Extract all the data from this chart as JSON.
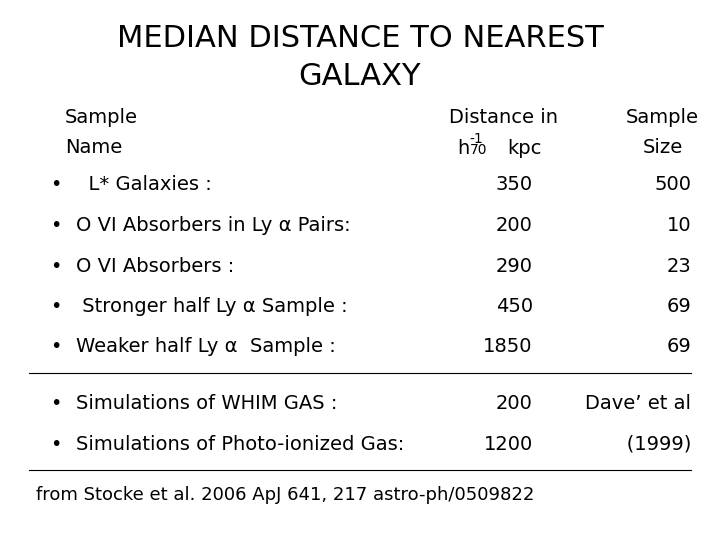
{
  "title_line1": "MEDIAN DISTANCE TO NEAREST",
  "title_line2": "GALAXY",
  "header_col1": "Sample\nName",
  "header_col2": "Distance in\nh⁻¹₀ kpc",
  "header_col2_plain": "Distance in",
  "header_col2_sub": "h",
  "header_col3": "Sample\nSize",
  "rows": [
    {
      "bullet": true,
      "name": "  L* Galaxies :",
      "dist": "350",
      "size": "500"
    },
    {
      "bullet": true,
      "name": "O VI Absorbers in Ly α Pairs:",
      "dist": "200",
      "size": "10"
    },
    {
      "bullet": true,
      "name": "O VI Absorbers :",
      "dist": "290",
      "size": "23"
    },
    {
      "bullet": true,
      "name": " Stronger half Ly α Sample :",
      "dist": "450",
      "size": "69"
    },
    {
      "bullet": true,
      "name": "Weaker half Ly α  Sample :",
      "dist": "1850",
      "size": "69"
    }
  ],
  "sim_rows": [
    {
      "bullet": true,
      "name": "Simulations of WHIM GAS :",
      "dist": "200",
      "extra": "Dave’ et al"
    },
    {
      "bullet": true,
      "name": "Simulations of Photo-ionized Gas:",
      "dist": "1200",
      "extra": "   (1999)"
    }
  ],
  "footer": "from Stocke et al. 2006 ApJ 641, 217 astro-ph/0509822",
  "bg_color": "#ffffff",
  "text_color": "#000000",
  "font_family": "sans-serif",
  "title_fontsize": 22,
  "header_fontsize": 14,
  "body_fontsize": 14,
  "footer_fontsize": 13
}
